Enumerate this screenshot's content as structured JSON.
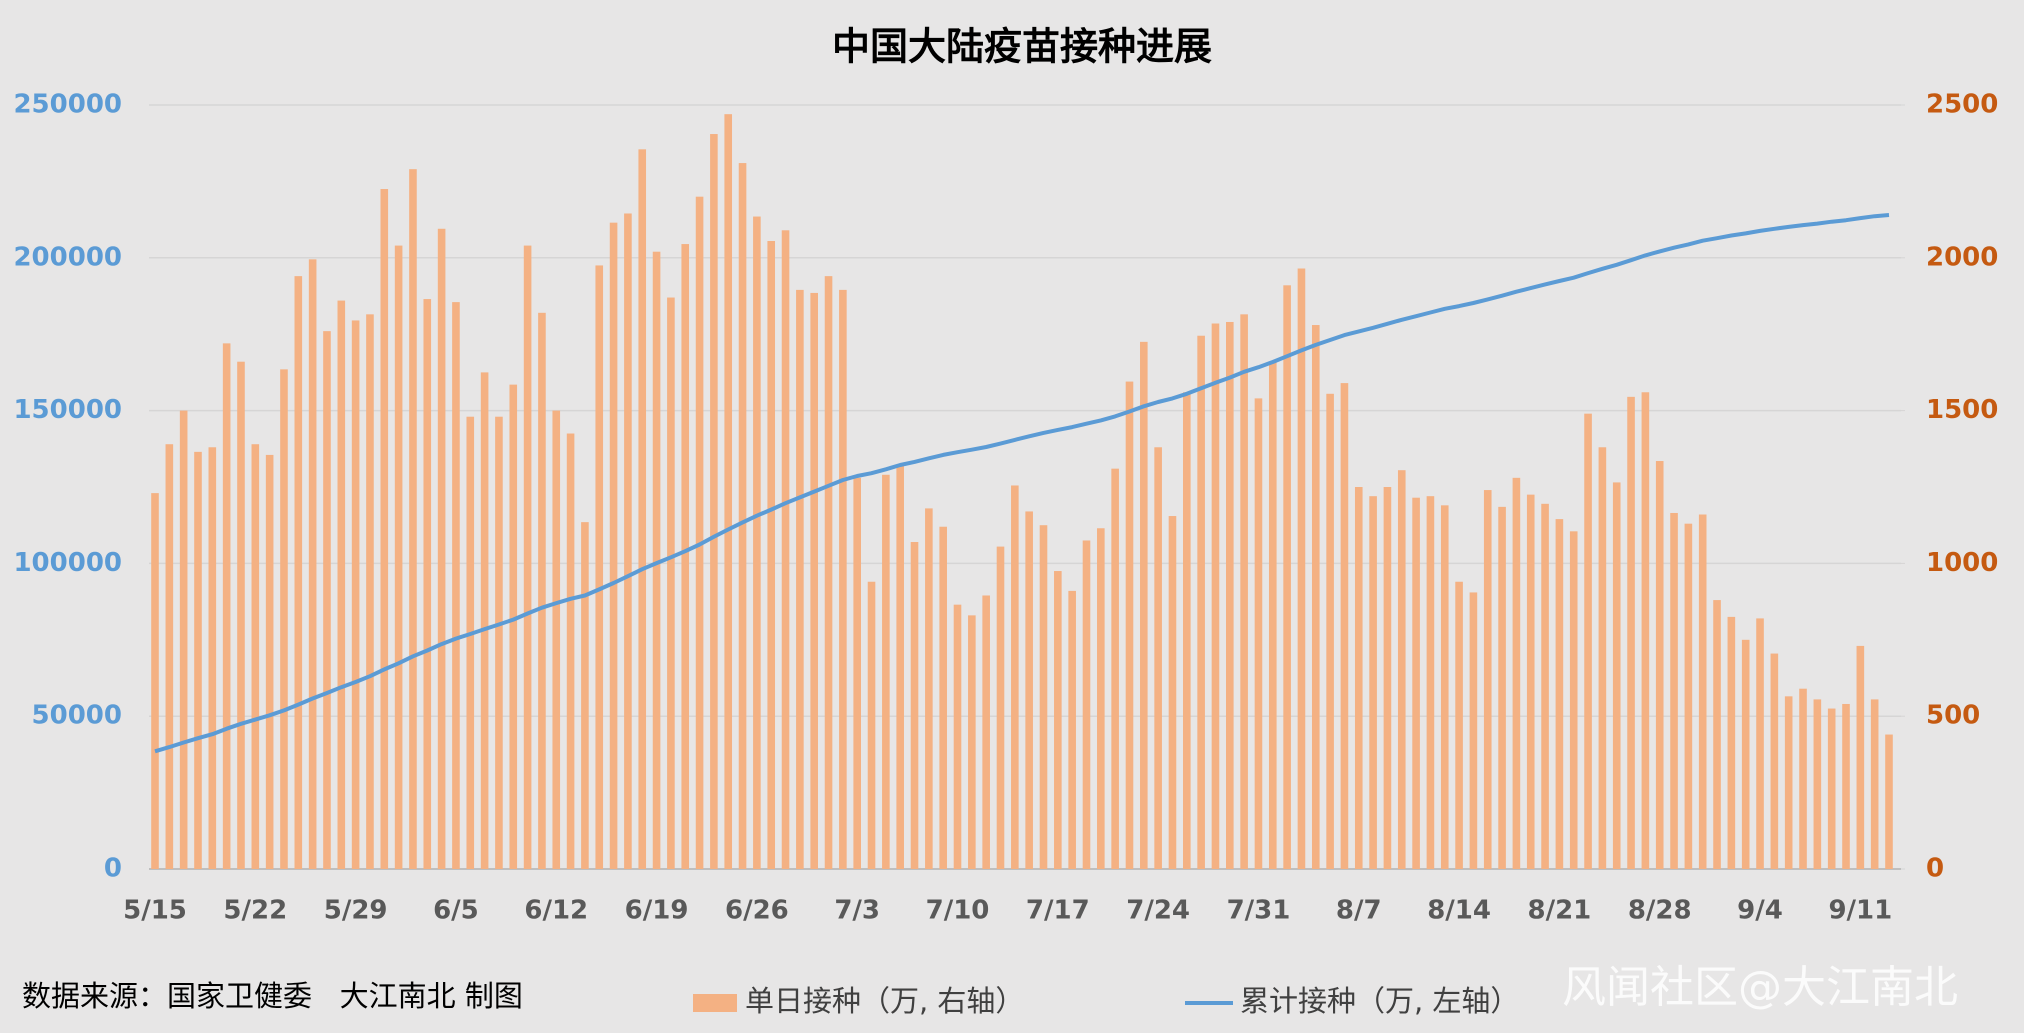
{
  "chart_data": {
    "type": "combo",
    "title": "中国大陆疫苗接种进展",
    "source": "数据来源：国家卫健委   大江南北 制图",
    "watermark": "风闻社区@大江南北",
    "categories": [
      "5/15",
      null,
      null,
      null,
      null,
      null,
      null,
      "5/22",
      null,
      null,
      null,
      null,
      null,
      null,
      "5/29",
      null,
      null,
      null,
      null,
      null,
      null,
      "6/5",
      null,
      null,
      null,
      null,
      null,
      null,
      "6/12",
      null,
      null,
      null,
      null,
      null,
      null,
      "6/19",
      null,
      null,
      null,
      null,
      null,
      null,
      "6/26",
      null,
      null,
      null,
      null,
      null,
      null,
      "7/3",
      null,
      null,
      null,
      null,
      null,
      null,
      "7/10",
      null,
      null,
      null,
      null,
      null,
      null,
      "7/17",
      null,
      null,
      null,
      null,
      null,
      null,
      "7/24",
      null,
      null,
      null,
      null,
      null,
      null,
      "7/31",
      null,
      null,
      null,
      null,
      null,
      null,
      "8/7",
      null,
      null,
      null,
      null,
      null,
      null,
      "8/14",
      null,
      null,
      null,
      null,
      null,
      null,
      "8/21",
      null,
      null,
      null,
      null,
      null,
      null,
      "8/28",
      null,
      null,
      null,
      null,
      null,
      null,
      "9/4",
      null,
      null,
      null,
      null,
      null,
      null,
      "9/11",
      null,
      null
    ],
    "series": [
      {
        "name": "单日接种（万, 右轴）",
        "type": "bar",
        "axis": "y2",
        "color": "#f4b183",
        "values": [
          1230,
          1390,
          1500,
          1365,
          1380,
          1720,
          1660,
          1390,
          1355,
          1635,
          1940,
          1995,
          1760,
          1860,
          1795,
          1815,
          2225,
          2040,
          2290,
          1865,
          2095,
          1855,
          1480,
          1625,
          1480,
          1585,
          2040,
          1820,
          1500,
          1425,
          1135,
          1975,
          2115,
          2145,
          2355,
          2020,
          1870,
          2045,
          2200,
          2405,
          2470,
          2310,
          2135,
          2055,
          2090,
          1895,
          1885,
          1940,
          1895,
          1280,
          940,
          1290,
          1320,
          1070,
          1180,
          1120,
          865,
          830,
          895,
          1055,
          1255,
          1170,
          1125,
          975,
          910,
          1075,
          1115,
          1310,
          1595,
          1725,
          1380,
          1155,
          1560,
          1745,
          1785,
          1790,
          1815,
          1540,
          1660,
          1910,
          1965,
          1780,
          1555,
          1590,
          1250,
          1220,
          1250,
          1305,
          1215,
          1220,
          1190,
          940,
          905,
          1240,
          1185,
          1280,
          1225,
          1195,
          1145,
          1105,
          1490,
          1380,
          1265,
          1545,
          1560,
          1335,
          1165,
          1130,
          1160,
          880,
          825,
          750,
          820,
          705,
          565,
          590,
          555,
          525,
          540,
          730,
          555,
          440
        ]
      },
      {
        "name": "累计接种（万, 左轴）",
        "type": "line",
        "axis": "y",
        "color": "#5b9bd5",
        "values": [
          38500,
          39900,
          41400,
          42800,
          44100,
          45900,
          47500,
          48900,
          50300,
          51900,
          53800,
          55800,
          57600,
          59500,
          61200,
          63100,
          65300,
          67300,
          69600,
          71500,
          73600,
          75400,
          76900,
          78500,
          80000,
          81600,
          83600,
          85500,
          87000,
          88400,
          89500,
          91500,
          93600,
          95800,
          98100,
          100100,
          102000,
          104000,
          106200,
          108700,
          111100,
          113400,
          115600,
          117600,
          119700,
          121600,
          123500,
          125400,
          127300,
          128600,
          129500,
          130800,
          132200,
          133200,
          134400,
          135500,
          136400,
          137200,
          138100,
          139200,
          140400,
          141600,
          142700,
          143700,
          144600,
          145700,
          146800,
          148100,
          149700,
          151400,
          152800,
          154000,
          155500,
          157300,
          159100,
          160800,
          162700,
          164200,
          165900,
          167800,
          169700,
          171500,
          173100,
          174700,
          175900,
          177100,
          178400,
          179700,
          180900,
          182100,
          183300,
          184200,
          185200,
          186400,
          187600,
          188900,
          190100,
          191300,
          192400,
          193500,
          195000,
          196400,
          197700,
          199200,
          200800,
          202100,
          203300,
          204400,
          205600,
          206400,
          207300,
          208000,
          208800,
          209500,
          210100,
          210700,
          211200,
          211800,
          212300,
          213000,
          213600,
          214000
        ]
      }
    ],
    "ylim": [
      0,
      250000
    ],
    "yticks": [
      0,
      50000,
      100000,
      150000,
      200000,
      250000
    ],
    "y2lim": [
      0,
      2500
    ],
    "y2ticks": [
      0,
      500,
      1000,
      1500,
      2000,
      2500
    ],
    "grid": true
  }
}
